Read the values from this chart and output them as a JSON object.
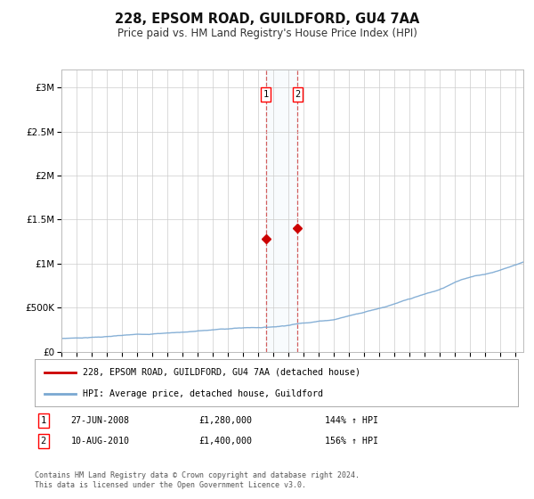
{
  "title": "228, EPSOM ROAD, GUILDFORD, GU4 7AA",
  "subtitle": "Price paid vs. HM Land Registry's House Price Index (HPI)",
  "hpi_label": "HPI: Average price, detached house, Guildford",
  "property_label": "228, EPSOM ROAD, GUILDFORD, GU4 7AA (detached house)",
  "sale1_date": "27-JUN-2008",
  "sale1_price": "£1,280,000",
  "sale1_pct": "144% ↑ HPI",
  "sale2_date": "10-AUG-2010",
  "sale2_price": "£1,400,000",
  "sale2_pct": "156% ↑ HPI",
  "footnote": "Contains HM Land Registry data © Crown copyright and database right 2024.\nThis data is licensed under the Open Government Licence v3.0.",
  "hpi_color": "#7aa8d2",
  "property_color": "#cc0000",
  "sale1_x": 2008.5,
  "sale2_x": 2010.6,
  "sale1_y": 1280000,
  "sale2_y": 1400000,
  "ylim": [
    0,
    3200000
  ],
  "xlim_start": 1995,
  "xlim_end": 2025.5,
  "background_color": "#ffffff",
  "grid_color": "#cccccc"
}
